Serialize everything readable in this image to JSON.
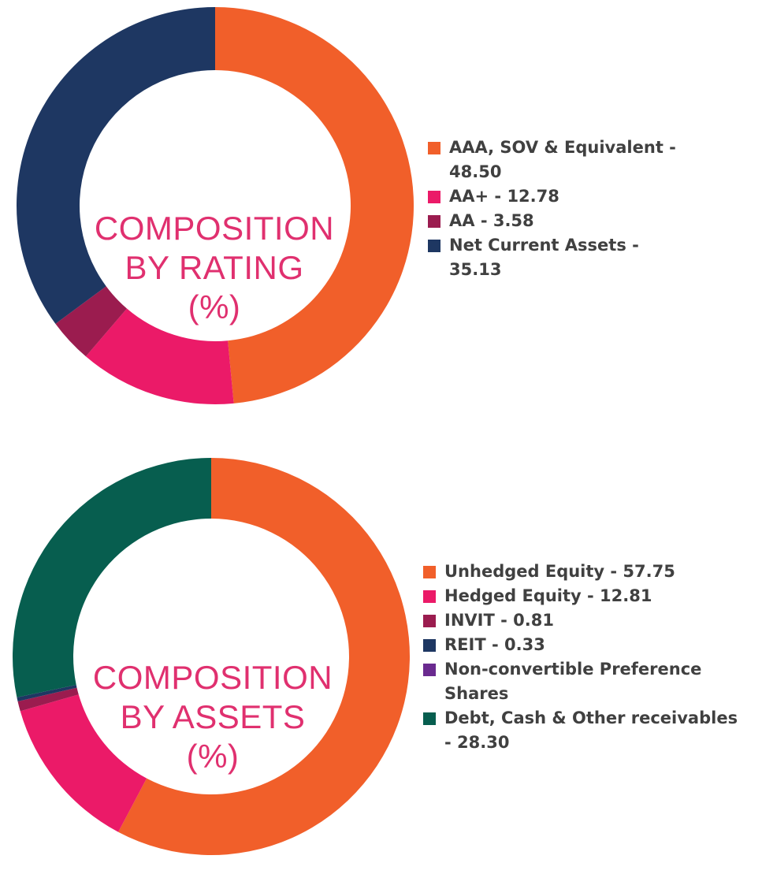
{
  "chart_data": [
    {
      "type": "pie",
      "donut": true,
      "center_title": [
        "COMPOSITION",
        "BY RATING",
        "(%)"
      ],
      "series": [
        {
          "name": "AAA, SOV & Equivalent",
          "value": 48.5,
          "color": "#f15f2a",
          "label": "AAA, SOV & Equivalent - 48.50"
        },
        {
          "name": "AA+",
          "value": 12.78,
          "color": "#eb1a68",
          "label": "AA+ - 12.78"
        },
        {
          "name": "AA",
          "value": 3.58,
          "color": "#9b1c4f",
          "label": "AA - 3.58"
        },
        {
          "name": "Net Current Assets",
          "value": 35.13,
          "color": "#1e3762",
          "label": "Net Current Assets - 35.13"
        }
      ],
      "legend_position": "right"
    },
    {
      "type": "pie",
      "donut": true,
      "center_title": [
        "COMPOSITION",
        "BY ASSETS",
        "(%)"
      ],
      "series": [
        {
          "name": "Unhedged Equity",
          "value": 57.75,
          "color": "#f15f2a",
          "label": "Unhedged Equity - 57.75"
        },
        {
          "name": "Hedged Equity",
          "value": 12.81,
          "color": "#eb1a68",
          "label": "Hedged Equity - 12.81"
        },
        {
          "name": "INVIT",
          "value": 0.81,
          "color": "#9b1c4f",
          "label": "INVIT - 0.81"
        },
        {
          "name": "REIT",
          "value": 0.33,
          "color": "#1e3762",
          "label": "REIT - 0.33"
        },
        {
          "name": "Non-convertible Preference Shares",
          "value": null,
          "color": "#6a2a8f",
          "label": "Non-convertible Preference Shares"
        },
        {
          "name": "Debt, Cash & Other receivables",
          "value": 28.3,
          "color": "#075e4f",
          "label": "Debt, Cash & Other receivables - 28.30"
        }
      ],
      "legend_position": "right"
    }
  ]
}
